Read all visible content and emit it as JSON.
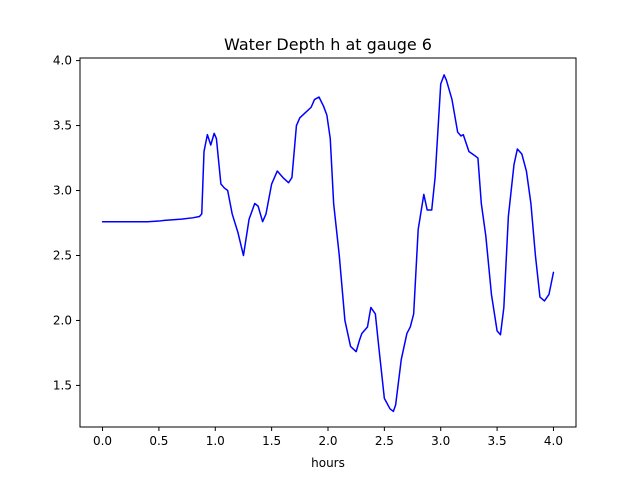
{
  "chart_data": {
    "type": "line",
    "title": "Water Depth h at gauge 6",
    "xlabel": "hours",
    "ylabel": "",
    "xlim": [
      -0.2,
      4.2
    ],
    "ylim": [
      1.18,
      4.02
    ],
    "xticks": [
      0.0,
      0.5,
      1.0,
      1.5,
      2.0,
      2.5,
      3.0,
      3.5,
      4.0
    ],
    "xtick_labels": [
      "0.0",
      "0.5",
      "1.0",
      "1.5",
      "2.0",
      "2.5",
      "3.0",
      "3.5",
      "4.0"
    ],
    "yticks": [
      1.5,
      2.0,
      2.5,
      3.0,
      3.5,
      4.0
    ],
    "ytick_labels": [
      "1.5",
      "2.0",
      "2.5",
      "3.0",
      "3.5",
      "4.0"
    ],
    "grid": false,
    "legend": "none",
    "series": [
      {
        "color": "#0000ff",
        "x": [
          0.0,
          0.2,
          0.4,
          0.5,
          0.55,
          0.7,
          0.8,
          0.86,
          0.88,
          0.9,
          0.93,
          0.96,
          0.99,
          1.01,
          1.05,
          1.08,
          1.11,
          1.15,
          1.2,
          1.25,
          1.3,
          1.35,
          1.38,
          1.42,
          1.45,
          1.5,
          1.55,
          1.6,
          1.65,
          1.68,
          1.72,
          1.75,
          1.8,
          1.85,
          1.88,
          1.92,
          1.96,
          1.99,
          2.02,
          2.05,
          2.1,
          2.15,
          2.2,
          2.25,
          2.28,
          2.3,
          2.35,
          2.38,
          2.42,
          2.45,
          2.5,
          2.55,
          2.58,
          2.6,
          2.65,
          2.7,
          2.73,
          2.76,
          2.8,
          2.85,
          2.88,
          2.92,
          2.95,
          3.0,
          3.03,
          3.05,
          3.1,
          3.15,
          3.18,
          3.2,
          3.25,
          3.3,
          3.33,
          3.36,
          3.4,
          3.45,
          3.5,
          3.53,
          3.56,
          3.6,
          3.65,
          3.68,
          3.72,
          3.76,
          3.8,
          3.84,
          3.88,
          3.92,
          3.96,
          4.0
        ],
        "y": [
          2.76,
          2.76,
          2.76,
          2.765,
          2.77,
          2.78,
          2.79,
          2.8,
          2.82,
          3.3,
          3.43,
          3.35,
          3.44,
          3.4,
          3.05,
          3.02,
          3.0,
          2.82,
          2.68,
          2.5,
          2.78,
          2.9,
          2.88,
          2.76,
          2.82,
          3.05,
          3.15,
          3.1,
          3.06,
          3.1,
          3.5,
          3.56,
          3.6,
          3.64,
          3.7,
          3.72,
          3.65,
          3.58,
          3.4,
          2.9,
          2.5,
          2.0,
          1.8,
          1.76,
          1.85,
          1.9,
          1.95,
          2.1,
          2.05,
          1.8,
          1.4,
          1.32,
          1.3,
          1.35,
          1.7,
          1.9,
          1.95,
          2.05,
          2.7,
          2.97,
          2.85,
          2.85,
          3.1,
          3.82,
          3.89,
          3.85,
          3.7,
          3.45,
          3.42,
          3.43,
          3.3,
          3.27,
          3.25,
          2.9,
          2.65,
          2.2,
          1.92,
          1.89,
          2.1,
          2.8,
          3.2,
          3.32,
          3.28,
          3.15,
          2.9,
          2.5,
          2.18,
          2.15,
          2.2,
          2.37
        ]
      }
    ]
  }
}
